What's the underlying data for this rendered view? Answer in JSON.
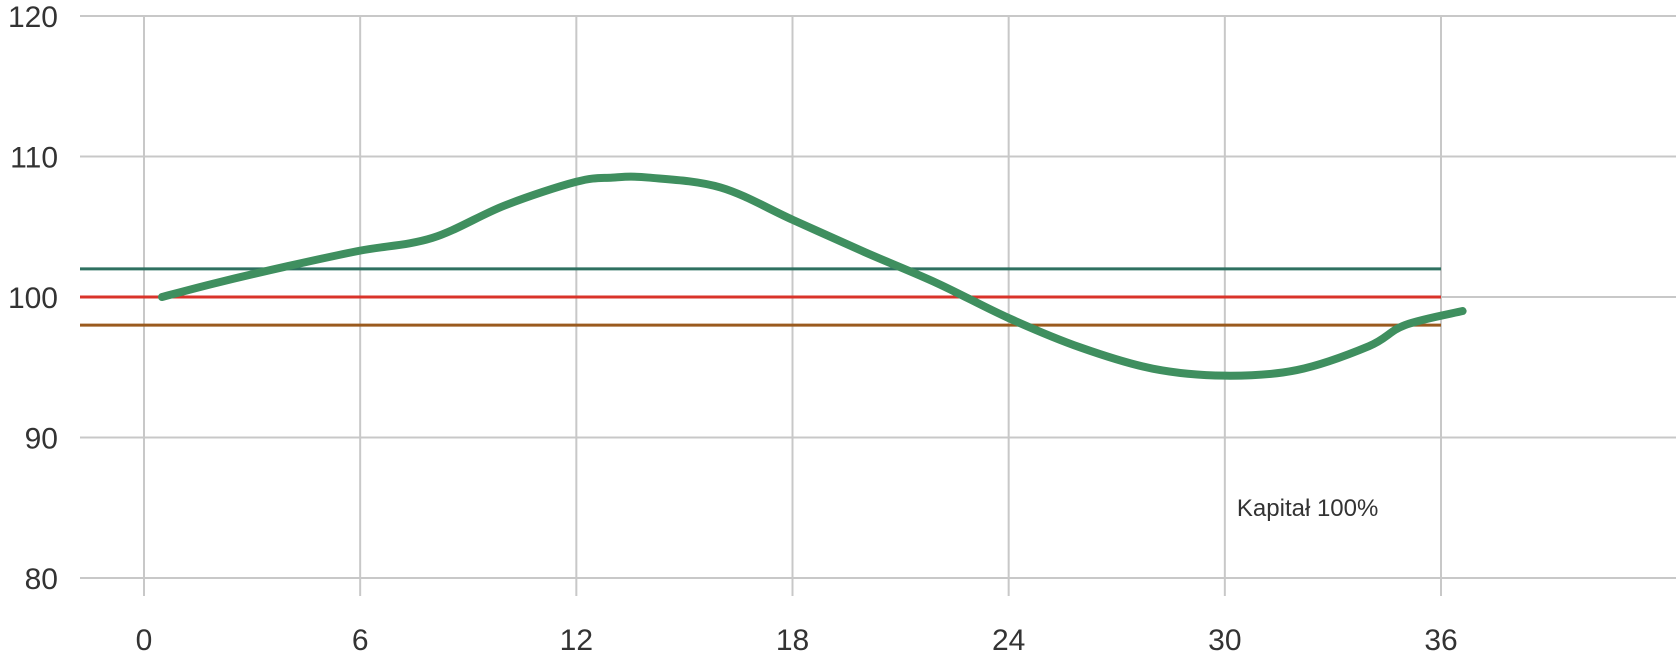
{
  "chart_data": {
    "type": "line",
    "title": "",
    "xlabel": "",
    "ylabel": "",
    "xlim": [
      -2,
      42
    ],
    "ylim": [
      80,
      120
    ],
    "x_ticks": [
      0,
      6,
      12,
      18,
      24,
      30,
      36
    ],
    "x_tick_labels": [
      "0",
      "6",
      "12",
      "18",
      "24",
      "30",
      "36"
    ],
    "y_ticks": [
      80,
      90,
      100,
      110,
      120
    ],
    "y_tick_labels": [
      "80",
      "90",
      "100",
      "110",
      "120"
    ],
    "grid": true,
    "legend": "none",
    "series": [
      {
        "color": "#3f8f5f",
        "x": [
          0.5,
          2,
          4,
          6,
          8,
          10,
          12,
          13,
          14,
          16,
          18,
          20,
          22,
          24,
          26,
          28,
          30,
          32,
          34,
          35,
          36.6
        ],
        "y": [
          100,
          101,
          102.2,
          103.3,
          104.2,
          106.5,
          108.2,
          108.5,
          108.5,
          107.8,
          105.5,
          103.2,
          101,
          98.5,
          96.4,
          94.9,
          94.4,
          94.8,
          96.5,
          98,
          99
        ]
      }
    ],
    "reference_lines": [
      {
        "y": 102,
        "x_range": [
          0,
          36
        ],
        "color": "#2e7060"
      },
      {
        "y": 100,
        "x_range": [
          0,
          36
        ],
        "color": "#d9332a"
      },
      {
        "y": 98,
        "x_range": [
          0,
          36
        ],
        "color": "#9a5a1e"
      }
    ],
    "annotations": [
      {
        "text": "Kapitał 100%",
        "x": 33,
        "y": 85
      }
    ]
  }
}
